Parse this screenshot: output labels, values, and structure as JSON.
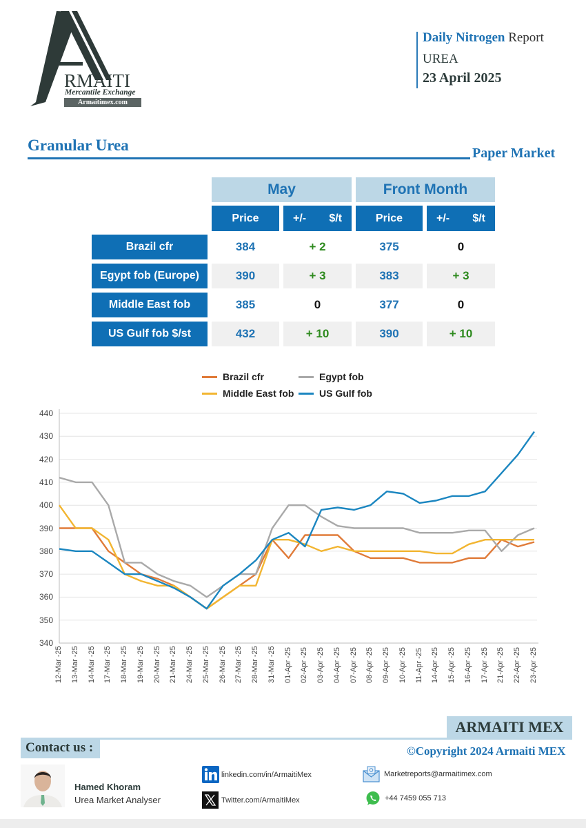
{
  "logo": {
    "wordmark": "RMAITI",
    "subtitle": "Mercantile Exchange",
    "url": "Armaitimex.com"
  },
  "header": {
    "title_bold": "Daily Nitrogen",
    "title_rest": "Report",
    "product": "UREA",
    "date": "23 April 2025"
  },
  "section": {
    "title": "Granular Urea",
    "subtitle": "Paper Market"
  },
  "table": {
    "groups": [
      "May",
      "Front Month"
    ],
    "columns": [
      {
        "label": "Price"
      },
      {
        "label_left": "+/-",
        "label_right": "$/t"
      },
      {
        "label": "Price"
      },
      {
        "label_left": "+/-",
        "label_right": "$/t"
      }
    ],
    "rows": [
      {
        "label": "Brazil cfr",
        "may_price": "384",
        "may_change": "+ 2",
        "fm_price": "375",
        "fm_change": "0"
      },
      {
        "label": "Egypt fob (Europe)",
        "may_price": "390",
        "may_change": "+ 3",
        "fm_price": "383",
        "fm_change": "+ 3"
      },
      {
        "label": "Middle East fob",
        "may_price": "385",
        "may_change": "0",
        "fm_price": "377",
        "fm_change": "0"
      },
      {
        "label": "US Gulf fob $/st",
        "may_price": "432",
        "may_change": "+ 10",
        "fm_price": "390",
        "fm_change": "+ 10"
      }
    ]
  },
  "chart_data": {
    "type": "line",
    "title": "",
    "xlabel": "",
    "ylabel": "",
    "ylim": [
      340,
      440
    ],
    "yticks": [
      340,
      350,
      360,
      370,
      380,
      390,
      400,
      410,
      420,
      430,
      440
    ],
    "grid": true,
    "legend_position": "top",
    "x": [
      "12-Mar -25",
      "13-Mar -25",
      "14-Mar -25",
      "17-Mar -25",
      "18-Mar -25",
      "19-Mar -25",
      "20-Mar -25",
      "21-Mar -25",
      "24-Mar -25",
      "25-Mar -25",
      "26-Mar -25",
      "27-Mar -25",
      "28-Mar -25",
      "31-Mar -25",
      "01-Apr -25",
      "02-Apr -25",
      "03-Apr -25",
      "04-Apr -25",
      "07-Apr -25",
      "08-Apr -25",
      "09-Apr -25",
      "10-Apr -25",
      "11-Apr -25",
      "14-Apr -25",
      "15-Apr -25",
      "16-Apr -25",
      "17-Apr -25",
      "21-Apr -25",
      "22-Apr -25",
      "23-Apr -25"
    ],
    "series": [
      {
        "name": "Brazil cfr",
        "color": "#e07b39",
        "values": [
          390,
          390,
          390,
          380,
          375,
          370,
          368,
          365,
          360,
          355,
          360,
          365,
          370,
          385,
          377,
          387,
          387,
          387,
          380,
          377,
          377,
          377,
          375,
          375,
          375,
          377,
          377,
          385,
          382,
          384
        ]
      },
      {
        "name": "Egypt fob",
        "color": "#a9a9a9",
        "values": [
          412,
          410,
          410,
          400,
          375,
          375,
          370,
          367,
          365,
          360,
          365,
          370,
          370,
          390,
          400,
          400,
          395,
          391,
          390,
          390,
          390,
          390,
          388,
          388,
          388,
          389,
          389,
          380,
          387,
          390
        ]
      },
      {
        "name": "Middle East fob",
        "color": "#f2b531",
        "values": [
          400,
          390,
          390,
          385,
          370,
          367,
          365,
          365,
          360,
          355,
          360,
          365,
          365,
          385,
          385,
          383,
          380,
          382,
          380,
          380,
          380,
          380,
          380,
          379,
          379,
          383,
          385,
          385,
          385,
          385
        ]
      },
      {
        "name": "US Gulf fob",
        "color": "#1b86c0",
        "values": [
          381,
          380,
          380,
          375,
          370,
          370,
          367,
          364,
          360,
          355,
          365,
          370,
          376,
          385,
          388,
          382,
          398,
          399,
          398,
          400,
          406,
          405,
          401,
          402,
          404,
          404,
          406,
          414,
          422,
          432
        ]
      }
    ]
  },
  "legend": {
    "items": [
      {
        "label": "Brazil cfr",
        "color": "#e07b39"
      },
      {
        "label": "Egypt fob",
        "color": "#a9a9a9"
      },
      {
        "label": "Middle East fob",
        "color": "#f2b531"
      },
      {
        "label": "US Gulf fob",
        "color": "#1b86c0"
      }
    ]
  },
  "footer": {
    "brand": "ARMAITI MEX",
    "contact_label": "Contact us :",
    "copyright": "©Copyright 2024 Armaiti MEX",
    "person": {
      "name": "Hamed Khoram",
      "role": "Urea Market Analyser"
    },
    "links": {
      "linkedin": "linkedin.com/in/ArmaitiMex",
      "twitter": "Twitter.com/ArmaitiMex",
      "email": "Marketreports@armaitimex.com",
      "phone": "+44 7459 055 713"
    },
    "icons": {
      "linkedin": "linkedin-icon",
      "twitter": "x-twitter-icon",
      "email": "email-icon",
      "phone": "whatsapp-icon"
    }
  },
  "colors": {
    "brand_blue": "#1f73b4",
    "table_header_blue": "#0f6fb5",
    "light_blue": "#bcd7e6",
    "positive_green": "#2e8a1e",
    "dark_text": "#2c3b3a"
  }
}
